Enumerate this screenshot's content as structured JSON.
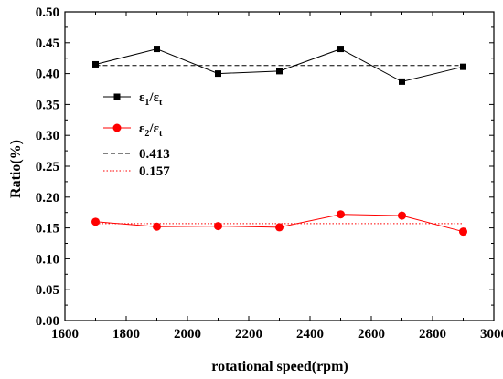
{
  "chart_data": {
    "type": "line",
    "xlabel": "rotational speed(rpm)",
    "ylabel": "Ratio(%)",
    "xlim": [
      1600,
      3000
    ],
    "ylim": [
      0.0,
      0.5
    ],
    "xticks": [
      "1600",
      "1800",
      "2000",
      "2200",
      "2400",
      "2600",
      "2800",
      "3000"
    ],
    "yticks": [
      "0.00",
      "0.05",
      "0.10",
      "0.15",
      "0.20",
      "0.25",
      "0.30",
      "0.35",
      "0.40",
      "0.45",
      "0.50"
    ],
    "series": [
      {
        "name": "ε1/εt",
        "name_parts": {
          "sym1": "ε",
          "sub1": "1",
          "sep": "/",
          "sym2": "ε",
          "sub2": "t"
        },
        "color": "#000000",
        "marker": "square",
        "line": "solid",
        "x": [
          1700,
          1900,
          2100,
          2300,
          2500,
          2700,
          2900
        ],
        "y": [
          0.415,
          0.44,
          0.4,
          0.404,
          0.44,
          0.387,
          0.411
        ]
      },
      {
        "name": "ε2/εt",
        "name_parts": {
          "sym1": "ε",
          "sub1": "2",
          "sep": "/",
          "sym2": "ε",
          "sub2": "t"
        },
        "color": "#ff0000",
        "marker": "circle",
        "line": "solid",
        "x": [
          1700,
          1900,
          2100,
          2300,
          2500,
          2700,
          2900
        ],
        "y": [
          0.16,
          0.152,
          0.153,
          0.151,
          0.172,
          0.17,
          0.144
        ]
      }
    ],
    "reference_lines": [
      {
        "name": "0.413",
        "value": 0.413,
        "color": "#000000",
        "line": "dashed",
        "x_range": [
          1700,
          2900
        ]
      },
      {
        "name": "0.157",
        "value": 0.157,
        "color": "#ff0000",
        "line": "dotted",
        "x_range": [
          1700,
          2900
        ]
      }
    ],
    "legend": "left",
    "grid": false
  }
}
